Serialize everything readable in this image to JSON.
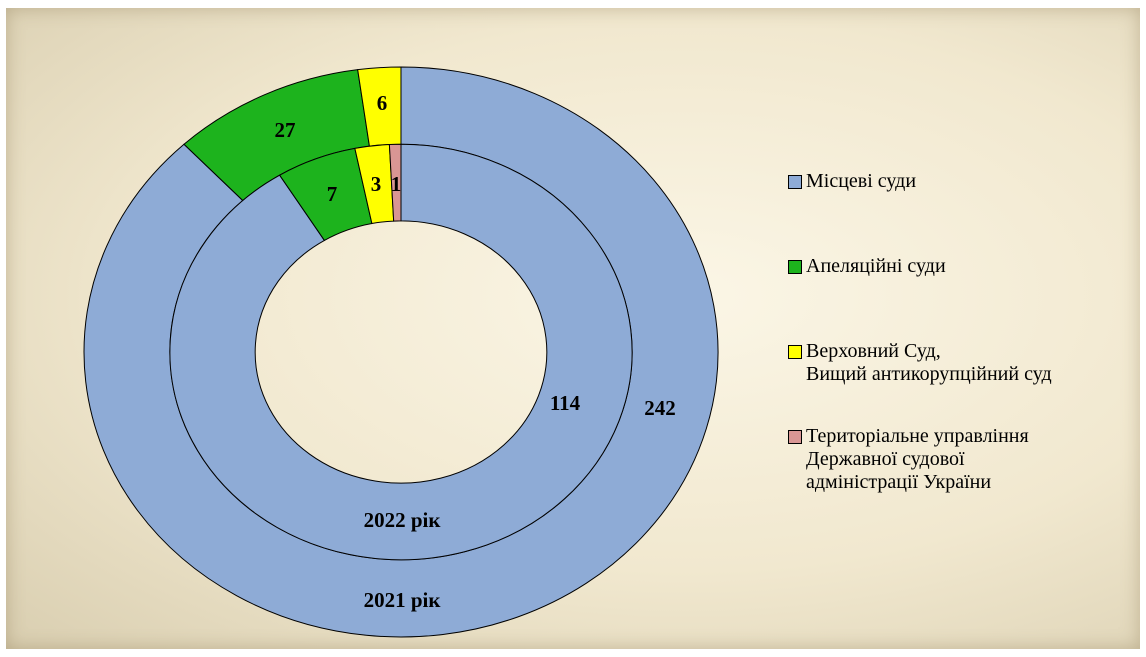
{
  "chart_data": {
    "type": "donut",
    "categories": [
      "Місцеві суди",
      "Апеляційні суди",
      "Верховний Суд,\nВищий антикорупційний суд",
      "Територіальне управління\nДержавної судової\nадміністрації України"
    ],
    "colors": [
      "#8eabd6",
      "#1db31d",
      "#ffff00",
      "#d99694"
    ],
    "series": [
      {
        "name": "2021 рік",
        "values": [
          242,
          27,
          6,
          null
        ]
      },
      {
        "name": "2022 рік",
        "values": [
          114,
          7,
          3,
          1
        ]
      }
    ],
    "legend": "right"
  }
}
